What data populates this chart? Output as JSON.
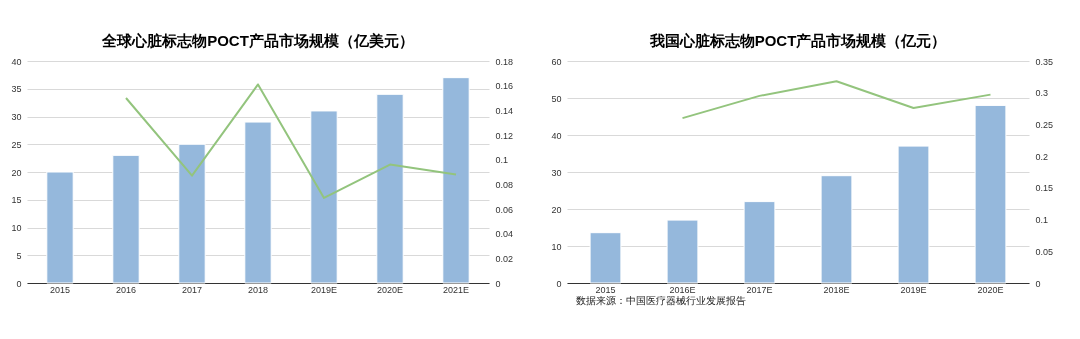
{
  "chart_data": [
    {
      "type": "bar",
      "title": "全球心脏标志物POCT产品市场规模（亿美元）",
      "categories": [
        "2015",
        "2016",
        "2017",
        "2018",
        "2019E",
        "2020E",
        "2021E"
      ],
      "series": [
        {
          "color": "#95b8dc",
          "values": [
            20,
            23,
            25,
            29,
            31,
            34,
            37
          ]
        },
        {
          "type": "line",
          "axis": "y2",
          "color": "#93c47d",
          "values": [
            null,
            0.15,
            0.087,
            0.161,
            0.069,
            0.096,
            0.088
          ]
        }
      ],
      "ylim": [
        0,
        40
      ],
      "yticks": [
        0,
        5,
        10,
        15,
        20,
        25,
        30,
        35,
        40
      ],
      "y2lim": [
        0,
        0.18
      ],
      "y2ticks": [
        0,
        0.02,
        0.04,
        0.06,
        0.08,
        0.1,
        0.12,
        0.14,
        0.16,
        0.18
      ],
      "grid": "y"
    },
    {
      "type": "bar",
      "title": "我国心脏标志物POCT产品市场规模（亿元）",
      "categories": [
        "2015",
        "2016E",
        "2017E",
        "2018E",
        "2019E",
        "2020E"
      ],
      "series": [
        {
          "color": "#95b8dc",
          "values": [
            13.6,
            17,
            22,
            29,
            37,
            48
          ]
        },
        {
          "type": "line",
          "axis": "y2",
          "color": "#93c47d",
          "values": [
            null,
            0.26,
            0.295,
            0.318,
            0.276,
            0.297
          ]
        }
      ],
      "ylim": [
        0,
        60
      ],
      "yticks": [
        0,
        10,
        20,
        30,
        40,
        50,
        60
      ],
      "y2lim": [
        0,
        0.35
      ],
      "y2ticks": [
        0,
        0.05,
        0.1,
        0.15,
        0.2,
        0.25,
        0.3,
        0.35
      ],
      "grid": "y",
      "annotations": [
        "数据来源：中国医疗器械行业发展报告"
      ]
    }
  ]
}
